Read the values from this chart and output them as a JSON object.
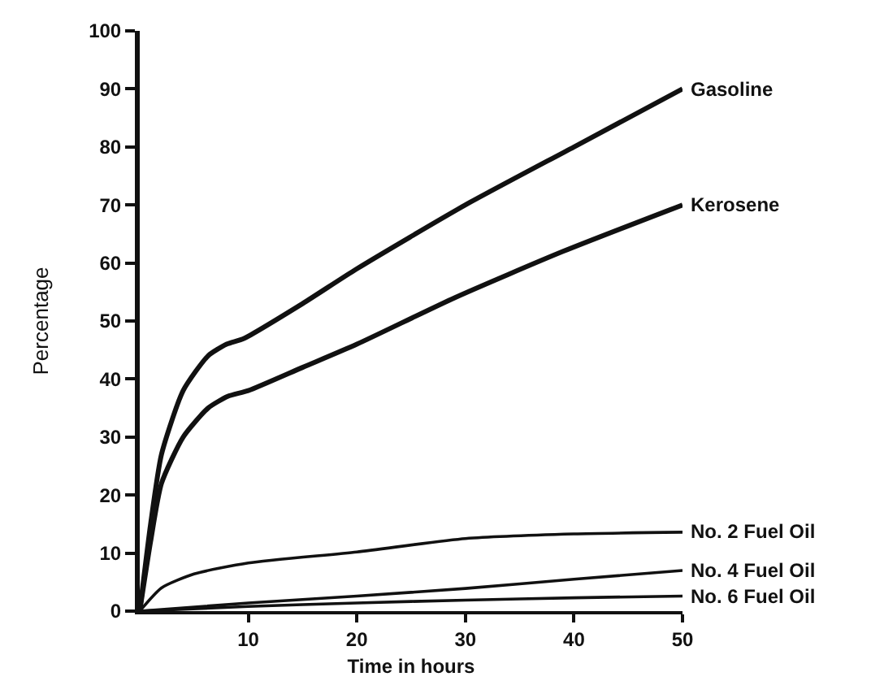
{
  "chart_data": {
    "type": "line",
    "xlabel": "Time in hours",
    "ylabel": "Percentage",
    "xlim": [
      0,
      50
    ],
    "ylim": [
      0,
      100
    ],
    "xticks": [
      10,
      20,
      30,
      40,
      50
    ],
    "yticks": [
      0,
      10,
      20,
      30,
      40,
      50,
      60,
      70,
      80,
      90,
      100
    ],
    "legend": false,
    "marker": "none",
    "line_style": "solid",
    "series": [
      {
        "name": "Gasoline",
        "color": "#111111",
        "x": [
          0,
          1,
          2,
          4,
          6.3,
          8,
          9.6,
          15,
          20,
          30,
          40,
          50
        ],
        "values": [
          0,
          15,
          27,
          38,
          44,
          46,
          47,
          53,
          59,
          70,
          80,
          90
        ]
      },
      {
        "name": "Kerosene",
        "color": "#111111",
        "x": [
          0,
          1,
          2,
          4,
          6.3,
          8.1,
          10,
          15,
          20,
          29,
          39,
          50
        ],
        "values": [
          0,
          12,
          22,
          30,
          35,
          37,
          38,
          42,
          46,
          54,
          62,
          70
        ]
      },
      {
        "name": "No. 2 Fuel Oil",
        "color": "#111111",
        "x": [
          0,
          2,
          5,
          10,
          20,
          30,
          40,
          50
        ],
        "values": [
          0,
          4,
          6.4,
          8.3,
          10.2,
          12.5,
          13.3,
          13.6
        ]
      },
      {
        "name": "No. 4 Fuel Oil",
        "color": "#111111",
        "x": [
          0,
          10,
          20,
          30,
          40,
          50
        ],
        "values": [
          0,
          1.4,
          2.6,
          3.9,
          5.5,
          7
        ]
      },
      {
        "name": "No. 6 Fuel Oil",
        "color": "#111111",
        "x": [
          0,
          10,
          20,
          30,
          40,
          50
        ],
        "values": [
          0,
          0.8,
          1.4,
          1.9,
          2.3,
          2.6
        ]
      }
    ]
  }
}
